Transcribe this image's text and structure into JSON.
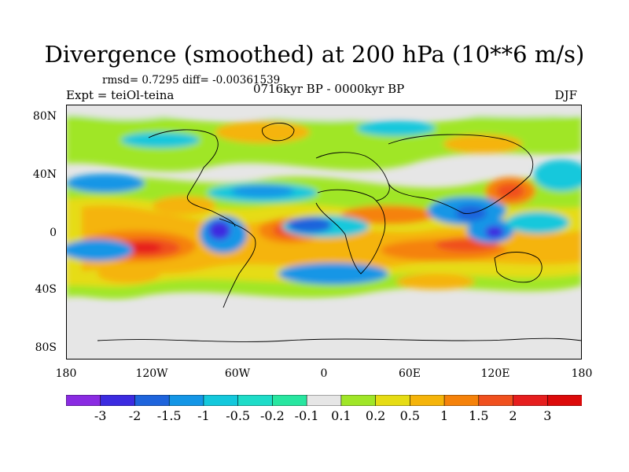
{
  "title": "Divergence (smoothed) at 200 hPa (10**6 m/s)",
  "stats": "rmsd= 0.7295 diff= -0.00361539",
  "experiment": "Expt = teiOl-teina",
  "period": "0716kyr BP - 0000kyr BP",
  "season": "DJF",
  "y_ticks": [
    "80N",
    "40N",
    "0",
    "40S",
    "80S"
  ],
  "x_ticks": [
    "180",
    "120W",
    "60W",
    "0",
    "60E",
    "120E",
    "180"
  ],
  "colorbar": {
    "levels": [
      "-3",
      "-2",
      "-1.5",
      "-1",
      "-0.5",
      "-0.2",
      "-0.1",
      "0.1",
      "0.2",
      "0.5",
      "1",
      "1.5",
      "2",
      "3"
    ],
    "colors": [
      "#8a2be2",
      "#3c2be0",
      "#1e64dc",
      "#1496e6",
      "#14c8dc",
      "#1edcc8",
      "#28e6a0",
      "#e6e6e6",
      "#a0e628",
      "#e6dc14",
      "#f5b40a",
      "#f5820a",
      "#f0501e",
      "#e61e1e",
      "#dc0a0a"
    ]
  },
  "colors": {
    "background": "#ffffff",
    "neutral": "#e6e6e6",
    "land_outline": "#000000"
  }
}
